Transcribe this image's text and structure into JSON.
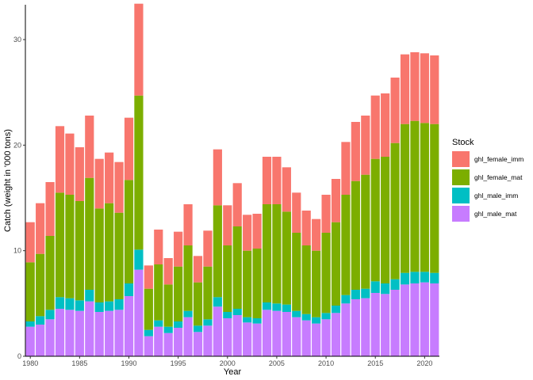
{
  "chart_data": {
    "type": "bar",
    "stacked": true,
    "title": "",
    "xlabel": "Year",
    "ylabel": "Catch (weight in '000 tons)",
    "legend_title": "Stock",
    "legend_position": "right",
    "grid": false,
    "xlim": [
      1979.5,
      2021.5
    ],
    "ylim": [
      0,
      33.3
    ],
    "xticks": [
      1980,
      1985,
      1990,
      1995,
      2000,
      2005,
      2010,
      2015,
      2020
    ],
    "yticks": [
      0,
      10,
      20,
      30
    ],
    "x": [
      1980,
      1981,
      1982,
      1983,
      1984,
      1985,
      1986,
      1987,
      1988,
      1989,
      1990,
      1991,
      1992,
      1993,
      1994,
      1995,
      1996,
      1997,
      1998,
      1999,
      2000,
      2001,
      2002,
      2003,
      2004,
      2005,
      2006,
      2007,
      2008,
      2009,
      2010,
      2011,
      2012,
      2013,
      2014,
      2015,
      2016,
      2017,
      2018,
      2019,
      2020,
      2021
    ],
    "stack_order_bottom_to_top": [
      "ghl_male_mat",
      "ghl_male_imm",
      "ghl_female_mat",
      "ghl_female_imm"
    ],
    "legend_order": [
      "ghl_female_imm",
      "ghl_female_mat",
      "ghl_male_imm",
      "ghl_male_mat"
    ],
    "series": [
      {
        "name": "ghl_male_mat",
        "color": "#C77CFF",
        "values": [
          2.8,
          3.0,
          3.5,
          4.5,
          4.4,
          4.3,
          5.2,
          4.2,
          4.3,
          4.4,
          5.7,
          8.2,
          1.9,
          2.8,
          2.2,
          2.7,
          3.7,
          2.3,
          2.9,
          4.7,
          3.6,
          3.9,
          3.2,
          3.1,
          4.4,
          4.3,
          4.2,
          3.7,
          3.4,
          3.1,
          3.5,
          4.1,
          5.0,
          5.4,
          5.5,
          6.0,
          5.9,
          6.3,
          6.8,
          6.9,
          7.0,
          6.9
        ]
      },
      {
        "name": "ghl_male_imm",
        "color": "#00BFC4",
        "values": [
          0.5,
          0.8,
          0.9,
          1.1,
          1.1,
          1.0,
          1.1,
          0.9,
          0.9,
          1.0,
          1.2,
          1.9,
          0.6,
          0.6,
          0.6,
          0.6,
          0.6,
          0.6,
          0.6,
          0.9,
          0.6,
          0.6,
          0.5,
          0.5,
          0.7,
          0.7,
          0.7,
          0.6,
          0.6,
          0.6,
          0.6,
          0.7,
          0.8,
          0.9,
          0.9,
          1.1,
          1.0,
          1.0,
          1.1,
          1.1,
          1.0,
          1.0
        ]
      },
      {
        "name": "ghl_female_mat",
        "color": "#7CAE00",
        "values": [
          5.6,
          5.9,
          7.0,
          9.9,
          9.8,
          9.4,
          10.6,
          8.9,
          9.3,
          8.2,
          9.8,
          14.6,
          3.9,
          5.3,
          4.0,
          5.2,
          6.2,
          4.1,
          5.0,
          8.7,
          6.3,
          7.8,
          6.3,
          6.6,
          9.3,
          9.4,
          8.8,
          7.4,
          6.5,
          6.3,
          7.6,
          7.9,
          9.5,
          10.3,
          10.8,
          11.6,
          12.0,
          12.9,
          14.1,
          14.3,
          14.1,
          14.1
        ]
      },
      {
        "name": "ghl_female_imm",
        "color": "#F8766D",
        "values": [
          3.8,
          4.8,
          5.1,
          6.3,
          5.8,
          5.1,
          5.9,
          4.7,
          4.8,
          4.8,
          5.9,
          8.7,
          2.2,
          3.3,
          2.5,
          3.3,
          3.9,
          2.5,
          3.4,
          5.3,
          3.8,
          4.1,
          3.4,
          3.3,
          4.5,
          4.5,
          4.2,
          3.8,
          3.3,
          3.0,
          3.6,
          4.1,
          5.0,
          5.6,
          5.6,
          6.0,
          6.0,
          6.2,
          6.6,
          6.5,
          6.6,
          6.5
        ]
      }
    ]
  }
}
